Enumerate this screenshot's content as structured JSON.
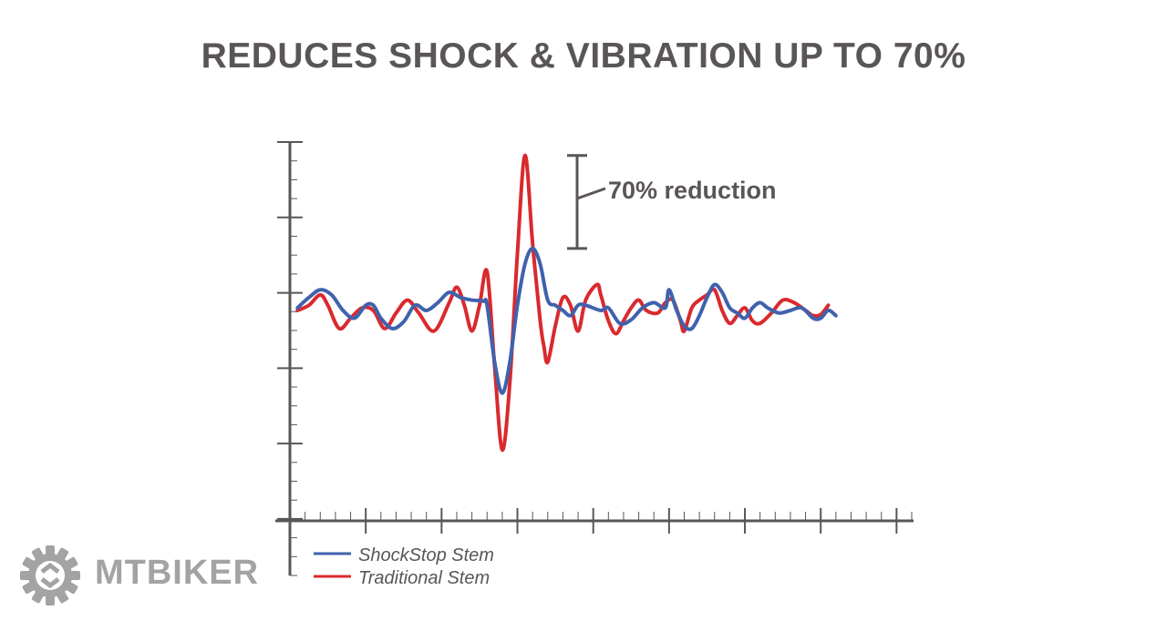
{
  "title": "REDUCES SHOCK & VIBRATION UP TO 70%",
  "logo": {
    "text": "MTBIKER",
    "icon": "gear-icon"
  },
  "chart_data": {
    "type": "line",
    "title": "REDUCES SHOCK & VIBRATION UP TO 70%",
    "xlabel": "",
    "ylabel": "",
    "xlim": [
      0,
      82
    ],
    "ylim": [
      -3,
      5.6
    ],
    "ticks": {
      "x_major_every": 10,
      "x_minor_every": 2,
      "y_major_every": 1,
      "y_minor_every": 0.25
    },
    "grid": false,
    "legend": "bottom-left",
    "annotation": {
      "text": "70% reduction",
      "from": 5.2,
      "to": 3.4
    },
    "series": [
      {
        "name": "ShockStop Stem",
        "color": "#3f62ad",
        "points": [
          [
            1,
            2.25
          ],
          [
            2.5,
            2.45
          ],
          [
            4,
            2.6
          ],
          [
            5.5,
            2.5
          ],
          [
            7,
            2.2
          ],
          [
            8.5,
            2.05
          ],
          [
            10,
            2.3
          ],
          [
            11,
            2.3
          ],
          [
            12,
            2.05
          ],
          [
            13.5,
            1.85
          ],
          [
            15,
            1.98
          ],
          [
            16.5,
            2.3
          ],
          [
            18,
            2.2
          ],
          [
            19.5,
            2.35
          ],
          [
            21,
            2.55
          ],
          [
            22.5,
            2.45
          ],
          [
            24,
            2.4
          ],
          [
            25.5,
            2.38
          ],
          [
            26,
            2.3
          ],
          [
            27,
            1.2
          ],
          [
            28,
            0.6
          ],
          [
            29,
            1.2
          ],
          [
            30,
            2.3
          ],
          [
            31,
            3.1
          ],
          [
            32,
            3.4
          ],
          [
            33,
            3.1
          ],
          [
            34,
            2.4
          ],
          [
            35,
            2.3
          ],
          [
            36,
            2.2
          ],
          [
            37,
            2.1
          ],
          [
            38,
            2.3
          ],
          [
            39,
            2.3
          ],
          [
            41,
            2.2
          ],
          [
            42,
            2.25
          ],
          [
            43.5,
            1.95
          ],
          [
            45,
            2.02
          ],
          [
            46.5,
            2.25
          ],
          [
            48,
            2.35
          ],
          [
            49.5,
            2.25
          ],
          [
            50,
            2.6
          ],
          [
            51,
            2.2
          ],
          [
            52,
            1.9
          ],
          [
            53,
            1.85
          ],
          [
            54,
            2.1
          ],
          [
            55,
            2.45
          ],
          [
            56,
            2.7
          ],
          [
            57,
            2.55
          ],
          [
            58,
            2.25
          ],
          [
            59,
            2.15
          ],
          [
            60,
            2.05
          ],
          [
            61,
            2.25
          ],
          [
            62,
            2.35
          ],
          [
            63,
            2.25
          ],
          [
            64.5,
            2.15
          ],
          [
            66,
            2.2
          ],
          [
            67.5,
            2.25
          ],
          [
            69,
            2.05
          ],
          [
            70,
            2.05
          ],
          [
            71,
            2.2
          ],
          [
            72,
            2.1
          ]
        ]
      },
      {
        "name": "Traditional Stem",
        "color": "#d92a2e",
        "points": [
          [
            1,
            2.2
          ],
          [
            2.5,
            2.3
          ],
          [
            4,
            2.5
          ],
          [
            5,
            2.3
          ],
          [
            6.5,
            1.85
          ],
          [
            8,
            2.05
          ],
          [
            9.5,
            2.25
          ],
          [
            11,
            2.2
          ],
          [
            12.5,
            1.85
          ],
          [
            14,
            2.15
          ],
          [
            15.5,
            2.4
          ],
          [
            17,
            2.15
          ],
          [
            19,
            1.8
          ],
          [
            21,
            2.35
          ],
          [
            22,
            2.65
          ],
          [
            23,
            2.3
          ],
          [
            24,
            1.8
          ],
          [
            25,
            2.3
          ],
          [
            26,
            2.95
          ],
          [
            27,
            1.1
          ],
          [
            28,
            -0.5
          ],
          [
            29,
            0.8
          ],
          [
            30,
            3.3
          ],
          [
            31,
            5.2
          ],
          [
            32,
            3.5
          ],
          [
            33,
            2.0
          ],
          [
            33.5,
            1.5
          ],
          [
            34,
            1.2
          ],
          [
            35,
            1.9
          ],
          [
            36,
            2.45
          ],
          [
            37,
            2.3
          ],
          [
            38,
            1.8
          ],
          [
            39,
            2.4
          ],
          [
            40.5,
            2.7
          ],
          [
            41,
            2.5
          ],
          [
            42,
            2.0
          ],
          [
            43,
            1.75
          ],
          [
            44,
            2.0
          ],
          [
            45,
            2.25
          ],
          [
            46,
            2.4
          ],
          [
            47,
            2.2
          ],
          [
            48.5,
            2.15
          ],
          [
            49.5,
            2.35
          ],
          [
            50.5,
            2.4
          ],
          [
            51.5,
            2.0
          ],
          [
            52,
            1.8
          ],
          [
            53,
            2.25
          ],
          [
            54,
            2.4
          ],
          [
            55,
            2.5
          ],
          [
            56,
            2.6
          ],
          [
            57,
            2.2
          ],
          [
            58,
            1.95
          ],
          [
            59,
            2.1
          ],
          [
            60,
            2.25
          ],
          [
            61,
            2.0
          ],
          [
            62,
            1.95
          ],
          [
            63.5,
            2.15
          ],
          [
            65,
            2.4
          ],
          [
            66.5,
            2.35
          ],
          [
            68,
            2.2
          ],
          [
            69,
            2.1
          ],
          [
            70,
            2.12
          ],
          [
            71,
            2.3
          ]
        ]
      }
    ]
  }
}
